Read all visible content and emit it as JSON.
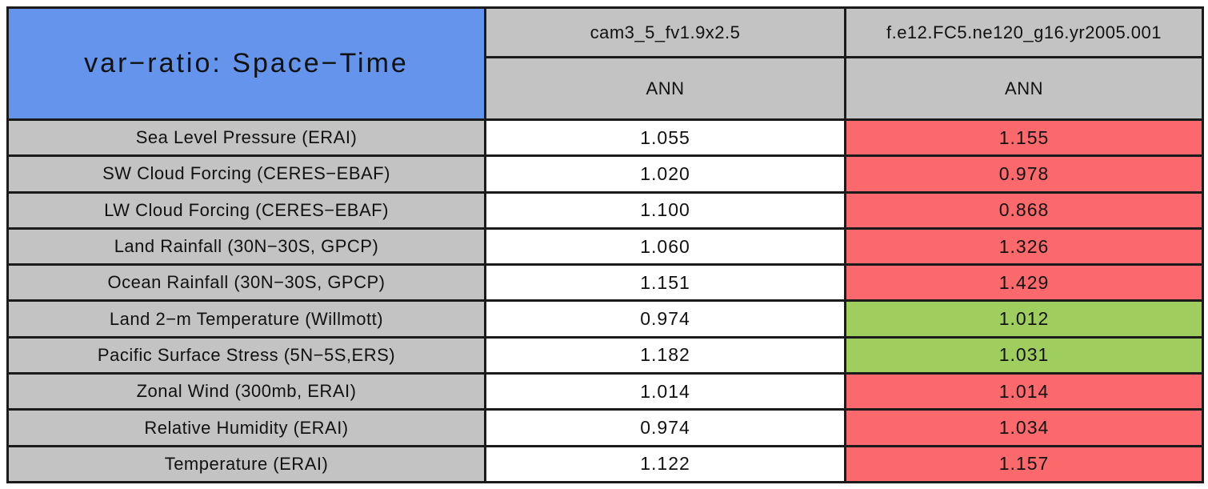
{
  "chart_data": {
    "type": "table",
    "title": "var−ratio: Space−Time",
    "column_headers": [
      "cam3_5_fv1.9x2.5",
      "f.e12.FC5.ne120_g16.yr2005.001"
    ],
    "subheaders": [
      "ANN",
      "ANN"
    ],
    "rows": [
      {
        "label": "Sea Level Pressure (ERAI)",
        "values": [
          {
            "text": "1.055",
            "bg": "white"
          },
          {
            "text": "1.155",
            "bg": "red"
          }
        ]
      },
      {
        "label": "SW Cloud Forcing (CERES−EBAF)",
        "values": [
          {
            "text": "1.020",
            "bg": "white"
          },
          {
            "text": "0.978",
            "bg": "red"
          }
        ]
      },
      {
        "label": "LW Cloud Forcing (CERES−EBAF)",
        "values": [
          {
            "text": "1.100",
            "bg": "white"
          },
          {
            "text": "0.868",
            "bg": "red"
          }
        ]
      },
      {
        "label": "Land Rainfall (30N−30S, GPCP)",
        "values": [
          {
            "text": "1.060",
            "bg": "white"
          },
          {
            "text": "1.326",
            "bg": "red"
          }
        ]
      },
      {
        "label": "Ocean Rainfall (30N−30S, GPCP)",
        "values": [
          {
            "text": "1.151",
            "bg": "white"
          },
          {
            "text": "1.429",
            "bg": "red"
          }
        ]
      },
      {
        "label": "Land 2−m Temperature (Willmott)",
        "values": [
          {
            "text": "0.974",
            "bg": "white"
          },
          {
            "text": "1.012",
            "bg": "green"
          }
        ]
      },
      {
        "label": "Pacific Surface Stress (5N−5S,ERS)",
        "values": [
          {
            "text": "1.182",
            "bg": "white"
          },
          {
            "text": "1.031",
            "bg": "green"
          }
        ]
      },
      {
        "label": "Zonal Wind (300mb, ERAI)",
        "values": [
          {
            "text": "1.014",
            "bg": "white"
          },
          {
            "text": "1.014",
            "bg": "red"
          }
        ]
      },
      {
        "label": "Relative Humidity (ERAI)",
        "values": [
          {
            "text": "0.974",
            "bg": "white"
          },
          {
            "text": "1.034",
            "bg": "red"
          }
        ]
      },
      {
        "label": "Temperature (ERAI)",
        "values": [
          {
            "text": "1.122",
            "bg": "white"
          },
          {
            "text": "1.157",
            "bg": "red"
          }
        ]
      }
    ],
    "series": [
      {
        "name": "cam3_5_fv1.9x2.5",
        "values": [
          1.055,
          1.02,
          1.1,
          1.06,
          1.151,
          0.974,
          1.182,
          1.014,
          0.974,
          1.122
        ]
      },
      {
        "name": "f.e12.FC5.ne120_g16.yr2005.001",
        "values": [
          1.155,
          0.978,
          0.868,
          1.326,
          1.429,
          1.012,
          1.031,
          1.014,
          1.034,
          1.157
        ]
      }
    ],
    "colors": {
      "title_bg": "#6494ec",
      "header_bg": "#c3c3c3",
      "cell_white": "#ffffff",
      "cell_red": "#fc696c",
      "cell_green": "#a0ce5e",
      "border": "#1b1b1b"
    }
  }
}
